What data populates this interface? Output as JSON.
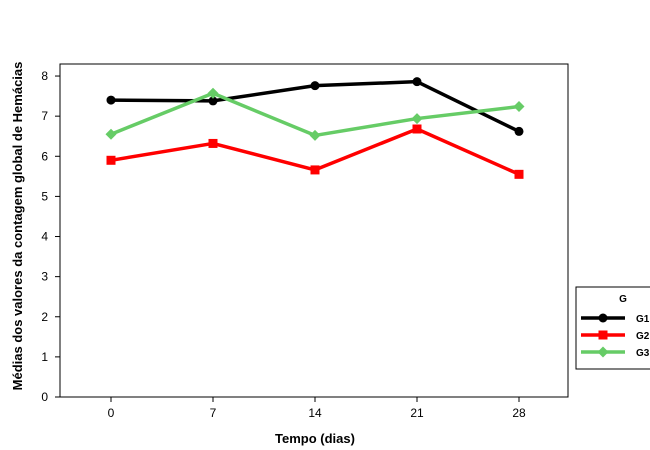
{
  "chart_data": {
    "type": "line",
    "title": "",
    "xlabel": "Tempo (dias)",
    "ylabel": "Médias dos valores da contagem global de Hemácias",
    "categories": [
      "0",
      "7",
      "14",
      "21",
      "28"
    ],
    "y_ticks": [
      "0",
      "1",
      "2",
      "3",
      "4",
      "5",
      "6",
      "7",
      "8"
    ],
    "ylim": [
      0,
      8.3
    ],
    "grid": false,
    "legend_position": "right",
    "legend_title": "G",
    "series": [
      {
        "name": "G1",
        "color": "#000000",
        "marker": "circle",
        "values": [
          7.4,
          7.38,
          7.76,
          7.86,
          6.62
        ]
      },
      {
        "name": "G2",
        "color": "#ff0000",
        "marker": "square",
        "values": [
          5.9,
          6.32,
          5.66,
          6.68,
          5.55
        ]
      },
      {
        "name": "G3",
        "color": "#66cc66",
        "marker": "diamond",
        "values": [
          6.55,
          7.57,
          6.52,
          6.94,
          7.24
        ]
      }
    ]
  }
}
